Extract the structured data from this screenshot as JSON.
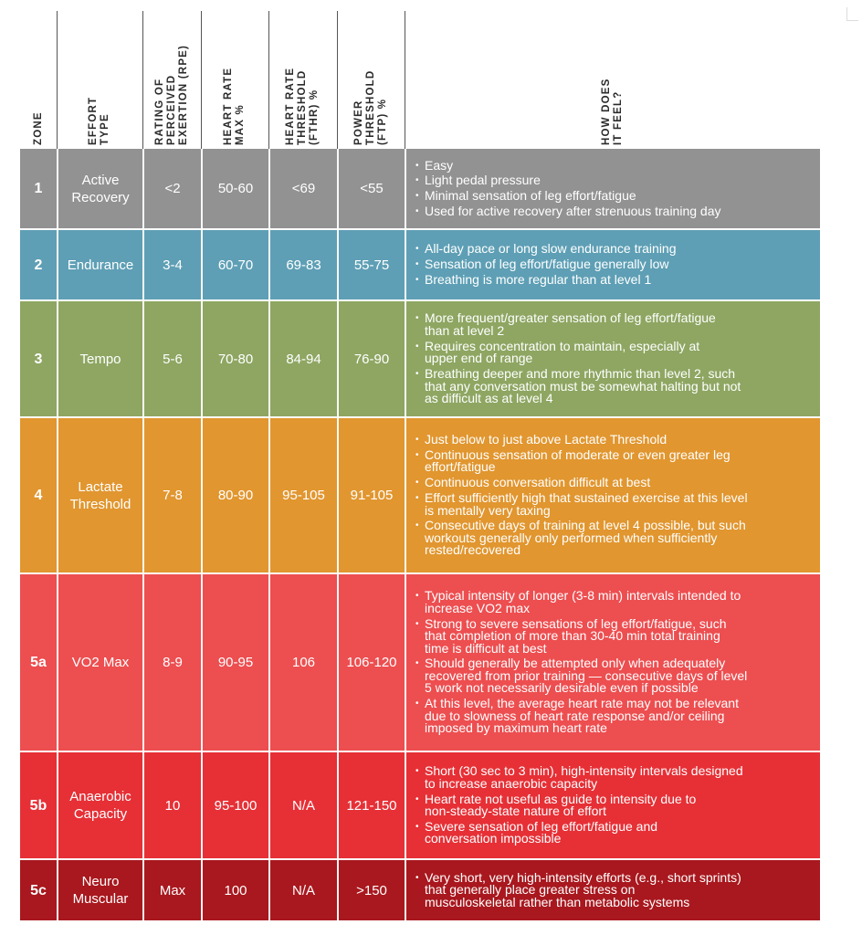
{
  "colors": {
    "zone_1": "#929292",
    "zone_2": "#5e9fb5",
    "zone_3": "#8ea662",
    "zone_4": "#e1962f",
    "zone_5a": "#ed4e50",
    "zone_5b": "#e63036",
    "zone_5c": "#a8181e"
  },
  "headers": [
    "ZONE",
    "EFFORT\nTYPE",
    "RATING OF\nPERCEIVED\nEXERTION (RPE)",
    "HEART RATE\nMAX %",
    "HEART RATE\nTHRESHOLD\n(FTHR) %",
    "POWER\nTHRESHOLD\n(FTP) %",
    "HOW DOES\nIT FEEL?"
  ],
  "rows": [
    {
      "zone": "1",
      "effort": "Active\nRecovery",
      "rpe": "<2",
      "hrmax": "50-60",
      "fthr": "<69",
      "ftp": "<55",
      "feel": [
        "Easy",
        "Light pedal pressure",
        "Minimal sensation of leg effort/fatigue",
        "Used for active recovery after strenuous training day"
      ]
    },
    {
      "zone": "2",
      "effort": "Endurance",
      "rpe": "3-4",
      "hrmax": "60-70",
      "fthr": "69-83",
      "ftp": "55-75",
      "feel": [
        "All-day pace or long slow endurance training",
        "Sensation of leg effort/fatigue generally low",
        "Breathing is more regular than at level 1"
      ]
    },
    {
      "zone": "3",
      "effort": "Tempo",
      "rpe": "5-6",
      "hrmax": "70-80",
      "fthr": "84-94",
      "ftp": "76-90",
      "feel": [
        "More frequent/greater sensation of leg effort/fatigue\nthan at level 2",
        "Requires concentration to maintain, especially at\nupper end of range",
        "Breathing deeper and more rhythmic than level 2, such\nthat any conversation must be somewhat halting but not\nas difficult as at level 4"
      ]
    },
    {
      "zone": "4",
      "effort": "Lactate\nThreshold",
      "rpe": "7-8",
      "hrmax": "80-90",
      "fthr": "95-105",
      "ftp": "91-105",
      "feel": [
        "Just below to just above Lactate Threshold",
        "Continuous sensation of moderate or even greater leg\neffort/fatigue",
        "Continuous conversation difficult at best",
        "Effort sufficiently high that sustained exercise at this level\nis mentally very taxing",
        "Consecutive days of training at level 4 possible, but such\nworkouts generally only performed when sufficiently\nrested/recovered"
      ]
    },
    {
      "zone": "5a",
      "effort": "VO2 Max",
      "rpe": "8-9",
      "hrmax": "90-95",
      "fthr": "106",
      "ftp": "106-120",
      "feel": [
        "Typical intensity of longer (3-8 min) intervals intended to\nincrease VO2 max",
        "Strong to severe sensations of leg effort/fatigue, such\nthat completion of more than 30-40 min total training\ntime is difficult at best",
        "Should generally be attempted only when adequately\nrecovered from prior training — consecutive days of level\n5 work not necessarily desirable even if possible",
        "At this level, the average heart rate may not be relevant\ndue to slowness of heart rate response and/or ceiling\nimposed by maximum heart rate"
      ]
    },
    {
      "zone": "5b",
      "effort": "Anaerobic\nCapacity",
      "rpe": "10",
      "hrmax": "95-100",
      "fthr": "N/A",
      "ftp": "121-150",
      "feel": [
        "Short (30 sec to 3 min), high-intensity intervals designed\nto increase anaerobic capacity",
        "Heart rate not useful as guide to intensity due to\nnon-steady-state nature of effort",
        "Severe sensation of leg effort/fatigue and\nconversation impossible"
      ]
    },
    {
      "zone": "5c",
      "effort": "Neuro\nMuscular",
      "rpe": "Max",
      "hrmax": "100",
      "fthr": "N/A",
      "ftp": ">150",
      "feel": [
        "Very short, very high-intensity efforts (e.g., short sprints)\nthat generally place greater stress on\nmusculoskeletal rather than metabolic systems"
      ]
    }
  ]
}
